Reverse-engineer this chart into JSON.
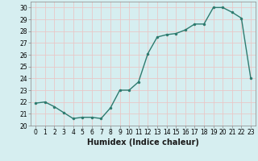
{
  "x": [
    0,
    1,
    2,
    3,
    4,
    5,
    6,
    7,
    8,
    9,
    10,
    11,
    12,
    13,
    14,
    15,
    16,
    17,
    18,
    19,
    20,
    21,
    22,
    23
  ],
  "y": [
    21.9,
    22.0,
    21.6,
    21.1,
    20.6,
    20.7,
    20.7,
    20.6,
    21.5,
    23.0,
    23.0,
    23.7,
    26.1,
    27.5,
    27.7,
    27.8,
    28.1,
    28.6,
    28.6,
    30.0,
    30.0,
    29.6,
    29.1,
    24.0
  ],
  "line_color": "#2d7b6f",
  "marker": "o",
  "marker_size": 2.2,
  "bg_color": "#d6eef0",
  "grid_color": "#c8dfe0",
  "xlabel": "Humidex (Indice chaleur)",
  "xlim": [
    -0.5,
    23.5
  ],
  "ylim": [
    20,
    30.5
  ],
  "yticks": [
    20,
    21,
    22,
    23,
    24,
    25,
    26,
    27,
    28,
    29,
    30
  ],
  "xtick_labels": [
    "0",
    "1",
    "2",
    "3",
    "4",
    "5",
    "6",
    "7",
    "8",
    "9",
    "10",
    "11",
    "12",
    "13",
    "14",
    "15",
    "16",
    "17",
    "18",
    "19",
    "20",
    "21",
    "22",
    "23"
  ],
  "tick_fontsize": 5.5,
  "xlabel_fontsize": 7.0,
  "line_width": 1.0
}
